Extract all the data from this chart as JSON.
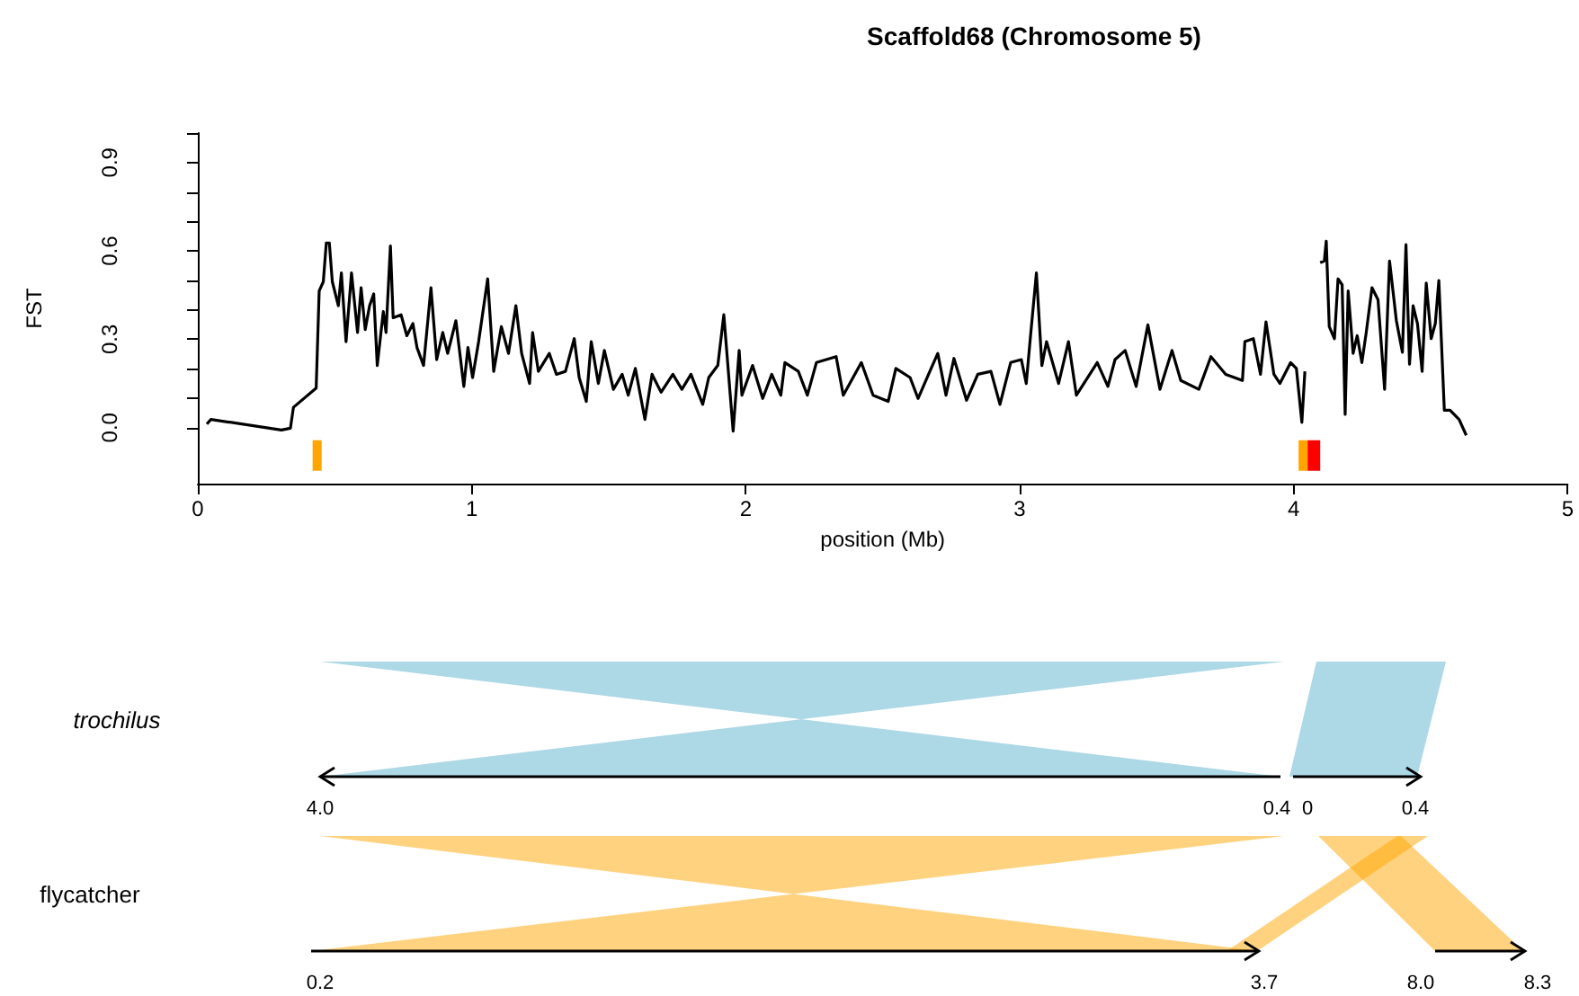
{
  "chart_data": [
    {
      "type": "line",
      "title": "Scaffold68 (Chromosome 5)",
      "xlabel": "position (Mb)",
      "ylabel": "FST",
      "x": [
        0.033,
        0.048,
        0.305,
        0.338,
        0.349,
        0.432,
        0.443,
        0.458,
        0.469,
        0.48,
        0.491,
        0.513,
        0.524,
        0.541,
        0.561,
        0.583,
        0.596,
        0.611,
        0.627,
        0.642,
        0.655,
        0.677,
        0.687,
        0.703,
        0.713,
        0.742,
        0.763,
        0.785,
        0.8,
        0.824,
        0.851,
        0.872,
        0.894,
        0.912,
        0.942,
        0.971,
        0.986,
        1.003,
        1.025,
        1.058,
        1.08,
        1.108,
        1.134,
        1.161,
        1.182,
        1.211,
        1.222,
        1.243,
        1.283,
        1.309,
        1.342,
        1.374,
        1.392,
        1.418,
        1.436,
        1.462,
        1.484,
        1.517,
        1.549,
        1.571,
        1.597,
        1.632,
        1.658,
        1.691,
        1.734,
        1.767,
        1.8,
        1.843,
        1.865,
        1.898,
        1.92,
        1.954,
        1.976,
        1.986,
        2.025,
        2.062,
        2.095,
        2.128,
        2.143,
        2.192,
        2.225,
        2.258,
        2.33,
        2.356,
        2.422,
        2.465,
        2.52,
        2.548,
        2.6,
        2.629,
        2.672,
        2.701,
        2.731,
        2.76,
        2.806,
        2.847,
        2.895,
        2.928,
        2.967,
        3.006,
        3.024,
        3.039,
        3.061,
        3.081,
        3.098,
        3.142,
        3.178,
        3.207,
        3.283,
        3.322,
        3.348,
        3.385,
        3.425,
        3.468,
        3.512,
        3.556,
        3.588,
        3.654,
        3.698,
        3.752,
        3.813,
        3.822,
        3.853,
        3.879,
        3.899,
        3.928,
        3.95,
        3.989,
        4.01,
        4.03,
        4.041,
        4.07,
        4.097,
        4.112,
        4.119,
        4.13,
        4.149,
        4.162,
        4.177,
        4.188,
        4.199,
        4.217,
        4.232,
        4.249,
        4.265,
        4.286,
        4.308,
        4.332,
        4.35,
        4.375,
        4.397,
        4.41,
        4.423,
        4.436,
        4.452,
        4.469,
        4.484,
        4.502,
        4.517,
        4.53,
        4.55,
        4.571,
        4.604,
        4.63
      ],
      "series": [
        {
          "color": "#000000",
          "values": [
            0.012,
            0.028,
            -0.008,
            -0.002,
            0.069,
            0.134,
            0.464,
            0.495,
            0.627,
            0.627,
            0.495,
            0.414,
            0.525,
            0.292,
            0.525,
            0.323,
            0.475,
            0.333,
            0.414,
            0.454,
            0.211,
            0.394,
            0.323,
            0.617,
            0.373,
            0.383,
            0.312,
            0.353,
            0.272,
            0.211,
            0.475,
            0.231,
            0.323,
            0.252,
            0.363,
            0.14,
            0.272,
            0.17,
            0.292,
            0.505,
            0.191,
            0.343,
            0.252,
            0.414,
            0.252,
            0.15,
            0.323,
            0.191,
            0.252,
            0.181,
            0.191,
            0.302,
            0.17,
            0.089,
            0.292,
            0.15,
            0.262,
            0.13,
            0.181,
            0.11,
            0.201,
            0.028,
            0.181,
            0.12,
            0.181,
            0.13,
            0.181,
            0.079,
            0.17,
            0.211,
            0.383,
            -0.012,
            0.262,
            0.11,
            0.211,
            0.099,
            0.181,
            0.11,
            0.221,
            0.191,
            0.11,
            0.221,
            0.241,
            0.11,
            0.221,
            0.11,
            0.089,
            0.201,
            0.17,
            0.099,
            0.191,
            0.252,
            0.11,
            0.235,
            0.093,
            0.181,
            0.191,
            0.079,
            0.221,
            0.231,
            0.15,
            0.306,
            0.525,
            0.211,
            0.292,
            0.15,
            0.292,
            0.11,
            0.221,
            0.14,
            0.231,
            0.262,
            0.14,
            0.349,
            0.13,
            0.262,
            0.16,
            0.13,
            0.241,
            0.181,
            0.16,
            0.292,
            0.302,
            0.181,
            0.359,
            0.181,
            0.15,
            0.221,
            0.201,
            0.018,
            0.191,
            null,
            0.56,
            0.566,
            0.633,
            0.343,
            0.302,
            0.505,
            0.485,
            0.045,
            0.464,
            0.252,
            0.312,
            0.221,
            0.323,
            0.475,
            0.434,
            0.13,
            0.566,
            0.363,
            0.256,
            0.621,
            0.215,
            0.414,
            0.353,
            0.191,
            0.491,
            0.302,
            0.353,
            0.499,
            0.059,
            0.059,
            0.028,
            -0.026
          ]
        }
      ],
      "xlim": [
        0,
        5
      ],
      "xticks": [
        0,
        1,
        2,
        3,
        4,
        5
      ],
      "ylim": [
        -0.19,
        1.0
      ],
      "yticks": [
        {
          "value": 0,
          "label": "0.0"
        },
        {
          "value": 0.1,
          "label": null
        },
        {
          "value": 0.2,
          "label": null
        },
        {
          "value": 0.3,
          "label": "0.3"
        },
        {
          "value": 0.4,
          "label": null
        },
        {
          "value": 0.5,
          "label": null
        },
        {
          "value": 0.6,
          "label": "0.6"
        },
        {
          "value": 0.7,
          "label": null
        },
        {
          "value": 0.8,
          "label": null
        },
        {
          "value": 0.9,
          "label": "0.9"
        },
        {
          "value": 1.0,
          "label": null
        }
      ],
      "bands": [
        {
          "axis": "x",
          "from": 0.419,
          "to": 0.452,
          "color": "#ffa500"
        },
        {
          "axis": "x",
          "from": 4.018,
          "to": 4.051,
          "color": "#ffa500"
        },
        {
          "axis": "x",
          "from": 4.051,
          "to": 4.097,
          "color": "#ff0000"
        }
      ]
    },
    {
      "type": "other",
      "annotations": [
        "trochilus",
        "flycatcher",
        "4.0",
        "0.4",
        "0",
        "0.4",
        "0.2",
        "3.7",
        "8.0",
        "8.3"
      ]
    }
  ]
}
